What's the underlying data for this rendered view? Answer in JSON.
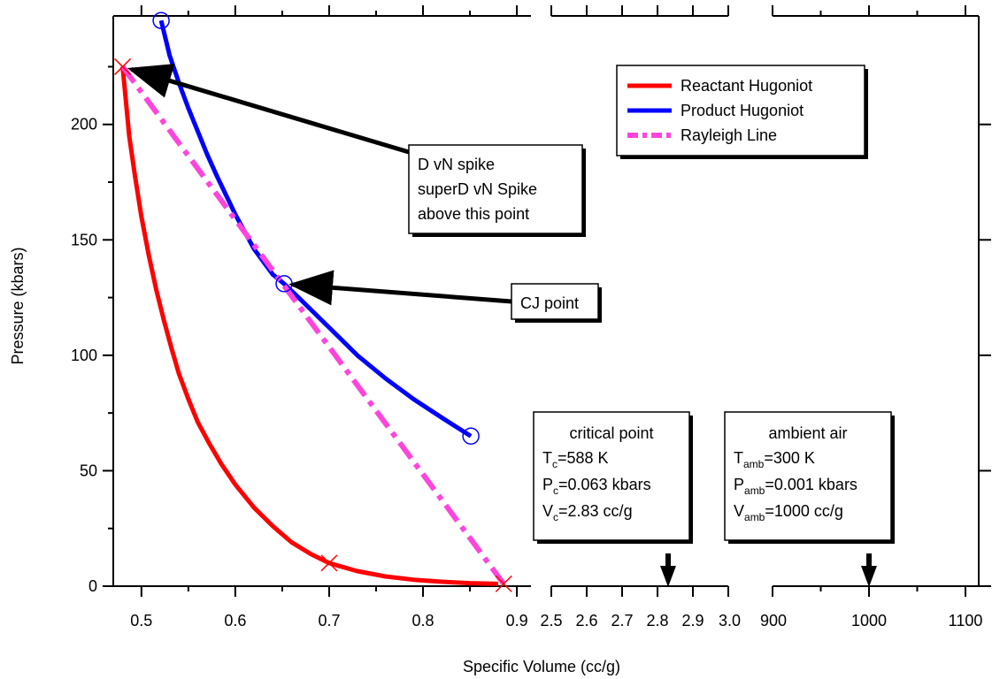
{
  "chart_data": {
    "type": "line",
    "xlabel": "Specific Volume (cc/g)",
    "ylabel": "Pressure (kbars)",
    "ylim": [
      0,
      247
    ],
    "yticks": [
      "0",
      "50",
      "100",
      "150",
      "200"
    ],
    "x_segments": [
      {
        "xlim": [
          0.47,
          0.915
        ],
        "ticks": [
          "0.5",
          "0.6",
          "0.7",
          "0.8",
          "0.9"
        ]
      },
      {
        "xlim": [
          2.5,
          3.0
        ],
        "ticks": [
          "2.5",
          "2.6",
          "2.7",
          "2.8",
          "2.9",
          "3.0"
        ]
      },
      {
        "xlim": [
          900,
          1100
        ],
        "ticks": [
          "900",
          "1000",
          "1100"
        ]
      }
    ],
    "legend": {
      "position": "top-right",
      "entries": [
        "Reactant Hugoniot",
        "Product Hugoniot",
        "Rayleigh Line"
      ]
    },
    "series": [
      {
        "name": "Reactant Hugoniot",
        "color": "#ff0000",
        "style": "solid",
        "x": [
          0.48,
          0.487,
          0.493,
          0.5,
          0.508,
          0.516,
          0.524,
          0.532,
          0.54,
          0.55,
          0.56,
          0.572,
          0.585,
          0.6,
          0.62,
          0.64,
          0.66,
          0.68,
          0.7,
          0.73,
          0.76,
          0.79,
          0.82,
          0.85,
          0.88
        ],
        "y": [
          225,
          195,
          178,
          160,
          143,
          128,
          115,
          103,
          92,
          81,
          71,
          62,
          53,
          44,
          34,
          26,
          19,
          14,
          10,
          6.5,
          4.2,
          2.8,
          1.9,
          1.3,
          1
        ]
      },
      {
        "name": "Product Hugoniot",
        "color": "#0000ff",
        "style": "solid",
        "x": [
          0.521,
          0.53,
          0.54,
          0.55,
          0.56,
          0.57,
          0.58,
          0.6,
          0.62,
          0.64,
          0.652,
          0.67,
          0.7,
          0.73,
          0.76,
          0.79,
          0.82,
          0.851
        ],
        "y": [
          245,
          230,
          218,
          207,
          197,
          187,
          178,
          161,
          146,
          135,
          131,
          124,
          112,
          100,
          90,
          81,
          73,
          65
        ]
      },
      {
        "name": "Rayleigh Line",
        "color": "#ff44dd",
        "style": "dash-dot",
        "x": [
          0.48,
          0.886
        ],
        "y": [
          225,
          1
        ]
      }
    ],
    "markers": [
      {
        "type": "x",
        "color": "#ff0000",
        "x": 0.48,
        "y": 225
      },
      {
        "type": "x",
        "color": "#ff0000",
        "x": 0.7,
        "y": 10
      },
      {
        "type": "x",
        "color": "#ff0000",
        "x": 0.886,
        "y": 1
      },
      {
        "type": "circle",
        "color": "#0000ff",
        "x": 0.521,
        "y": 245
      },
      {
        "type": "circle",
        "color": "#0000ff",
        "x": 0.652,
        "y": 131
      },
      {
        "type": "circle",
        "color": "#0000ff",
        "x": 0.851,
        "y": 65
      }
    ],
    "annotations": [
      {
        "lines": [
          "D vN spike",
          "superD vN Spike",
          "above this point"
        ],
        "arrow_to": {
          "x": 0.48,
          "y": 225
        }
      },
      {
        "lines": [
          "CJ point"
        ],
        "arrow_to": {
          "x": 0.652,
          "y": 131
        }
      }
    ],
    "info_boxes": [
      {
        "title": "critical point",
        "rows": [
          {
            "pre": "T",
            "sub": "c",
            "post": "=588 K"
          },
          {
            "pre": "P",
            "sub": "c",
            "post": "=0.063 kbars"
          },
          {
            "pre": "V",
            "sub": "c",
            "post": "=2.83 cc/g"
          }
        ],
        "arrow_x": {
          "segment": 1,
          "value": 2.83
        }
      },
      {
        "title": "ambient air",
        "rows": [
          {
            "pre": "T",
            "sub": "amb",
            "post": "=300 K"
          },
          {
            "pre": "P",
            "sub": "amb",
            "post": "=0.001 kbars"
          },
          {
            "pre": "V",
            "sub": "amb",
            "post": "=1000 cc/g"
          }
        ],
        "arrow_x": {
          "segment": 2,
          "value": 1000
        }
      }
    ]
  }
}
